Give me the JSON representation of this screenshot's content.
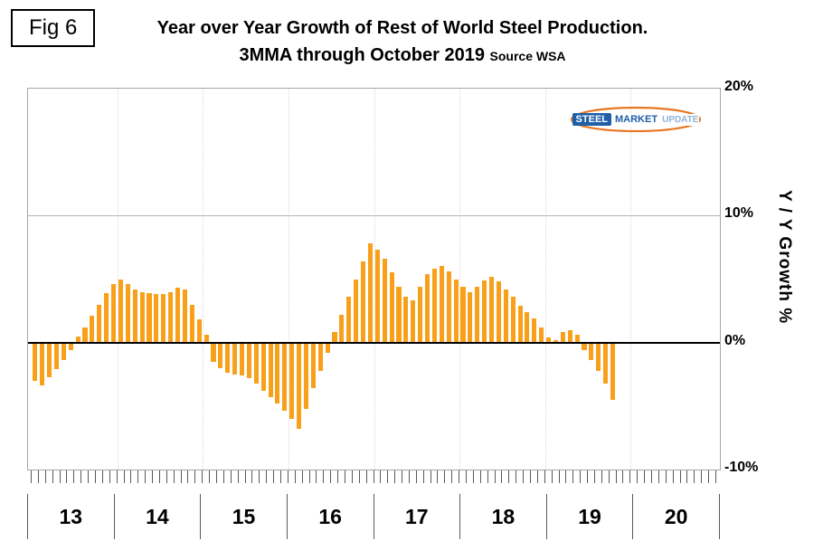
{
  "figure_label": "Fig 6",
  "title": {
    "line1": "Year over Year Growth of Rest of World Steel Production.",
    "line2": "3MMA through October 2019",
    "source": "Source WSA"
  },
  "y_axis": {
    "title": "Y / Y Growth %"
  },
  "x_axis": {
    "years": [
      "13",
      "14",
      "15",
      "16",
      "17",
      "18",
      "19",
      "20"
    ]
  },
  "logo": {
    "steel": "STEEL",
    "market": "MARKET",
    "update": "UPDATE"
  },
  "colors": {
    "bar": "#F9A01B",
    "zero_line": "#000000",
    "gridline": "#B3B3B3",
    "logo_dark_blue": "#1F5FA8",
    "logo_light_blue": "#8FB4D9",
    "logo_orange": "#E87722"
  },
  "chart_data": {
    "type": "bar",
    "title": "Year over Year Growth of Rest of World Steel Production. 3MMA through October 2019",
    "source": "WSA",
    "xlabel": "",
    "ylabel": "Y / Y Growth %",
    "ylim": [
      -10,
      20
    ],
    "frequency": "monthly",
    "x_start": "2013-01",
    "x_end": "2019-10",
    "x_year_labels": [
      "13",
      "14",
      "15",
      "16",
      "17",
      "18",
      "19",
      "20"
    ],
    "y_ticks": [
      {
        "value": 20,
        "label": "20%"
      },
      {
        "value": 10,
        "label": "10%"
      },
      {
        "value": 0,
        "label": "0%"
      },
      {
        "value": -10,
        "label": "-10%"
      }
    ],
    "gridlines_y": [
      10
    ],
    "legend": "none",
    "series": [
      {
        "name": "Rest of World Steel Production YoY Growth % (3MMA)",
        "values": [
          -3.0,
          -3.4,
          -2.7,
          -2.1,
          -1.4,
          -0.6,
          0.5,
          1.2,
          2.1,
          3.0,
          3.9,
          4.6,
          5.0,
          4.6,
          4.2,
          4.0,
          3.9,
          3.8,
          3.8,
          4.0,
          4.3,
          4.2,
          3.0,
          1.8,
          0.6,
          -1.5,
          -2.0,
          -2.4,
          -2.5,
          -2.6,
          -2.8,
          -3.2,
          -3.8,
          -4.3,
          -4.8,
          -5.4,
          -6.0,
          -6.8,
          -5.2,
          -3.6,
          -2.2,
          -0.8,
          0.8,
          2.2,
          3.6,
          5.0,
          6.4,
          7.8,
          7.3,
          6.6,
          5.5,
          4.4,
          3.6,
          3.3,
          4.4,
          5.4,
          5.8,
          6.0,
          5.6,
          5.0,
          4.4,
          4.0,
          4.4,
          4.9,
          5.2,
          4.8,
          4.2,
          3.6,
          2.9,
          2.4,
          1.9,
          1.2,
          0.4,
          0.2,
          0.8,
          1.0,
          0.6,
          -0.6,
          -1.4,
          -2.2,
          -3.2,
          -4.5
        ]
      }
    ]
  }
}
